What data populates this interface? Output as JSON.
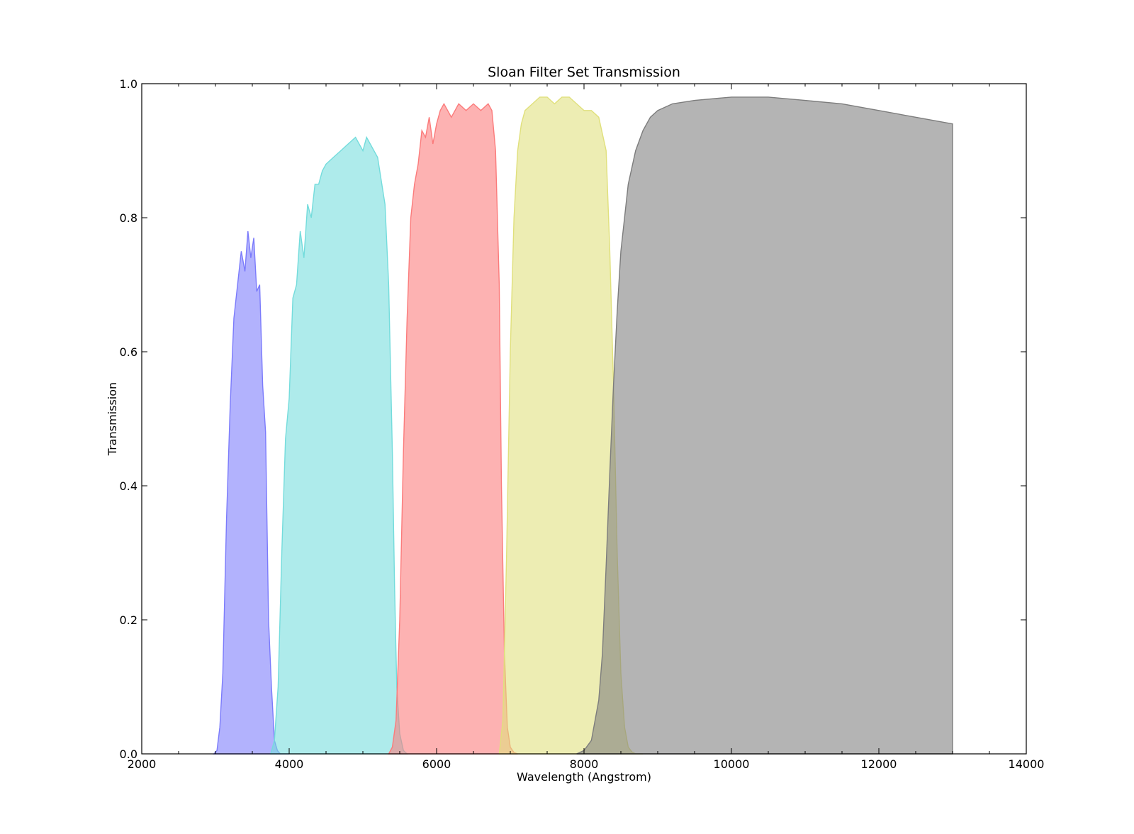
{
  "chart_data": {
    "type": "area",
    "title": "Sloan Filter Set Transmission",
    "xlabel": "Wavelength (Angstrom)",
    "ylabel": "Transmission",
    "xlim": [
      2000,
      14000
    ],
    "ylim": [
      0,
      1.0
    ],
    "x_ticks": [
      2000,
      4000,
      6000,
      8000,
      10000,
      12000,
      14000
    ],
    "x_tick_labels": [
      "2000",
      "4000",
      "6000",
      "8000",
      "10000",
      "12000",
      "14000"
    ],
    "y_ticks": [
      0,
      0.2,
      0.4,
      0.6,
      0.8,
      1.0
    ],
    "y_tick_labels": [
      "0.0",
      "0.2",
      "0.4",
      "0.6",
      "0.8",
      "1.0"
    ],
    "grid": false,
    "legend": "none",
    "series": [
      {
        "color": "#7b7bfb",
        "x": [
          2980,
          3020,
          3060,
          3100,
          3150,
          3200,
          3250,
          3300,
          3350,
          3400,
          3440,
          3480,
          3520,
          3560,
          3600,
          3640,
          3680,
          3720,
          3760,
          3800,
          3840,
          3880,
          3920,
          3960,
          4000
        ],
        "y": [
          0,
          0.005,
          0.04,
          0.12,
          0.35,
          0.52,
          0.65,
          0.7,
          0.75,
          0.72,
          0.78,
          0.74,
          0.77,
          0.69,
          0.7,
          0.55,
          0.48,
          0.2,
          0.1,
          0.02,
          0.005,
          0,
          0,
          0,
          0
        ]
      },
      {
        "color": "#74dcdc",
        "x": [
          3750,
          3800,
          3850,
          3900,
          3950,
          4000,
          4050,
          4100,
          4150,
          4200,
          4250,
          4300,
          4350,
          4400,
          4450,
          4500,
          4600,
          4700,
          4800,
          4900,
          5000,
          5050,
          5100,
          5200,
          5300,
          5350,
          5400,
          5430,
          5460,
          5500,
          5550,
          5600
        ],
        "y": [
          0,
          0.02,
          0.1,
          0.3,
          0.47,
          0.53,
          0.68,
          0.7,
          0.78,
          0.74,
          0.82,
          0.8,
          0.85,
          0.85,
          0.87,
          0.88,
          0.89,
          0.9,
          0.91,
          0.92,
          0.9,
          0.92,
          0.91,
          0.89,
          0.82,
          0.7,
          0.45,
          0.25,
          0.1,
          0.03,
          0.005,
          0
        ]
      },
      {
        "color": "#fb7b7b",
        "x": [
          5350,
          5400,
          5450,
          5500,
          5550,
          5600,
          5650,
          5700,
          5750,
          5800,
          5850,
          5900,
          5950,
          6000,
          6050,
          6100,
          6150,
          6200,
          6300,
          6400,
          6500,
          6600,
          6700,
          6750,
          6800,
          6850,
          6880,
          6920,
          6960,
          7000,
          7050,
          7100
        ],
        "y": [
          0,
          0.01,
          0.05,
          0.2,
          0.45,
          0.65,
          0.8,
          0.85,
          0.88,
          0.93,
          0.92,
          0.95,
          0.91,
          0.94,
          0.96,
          0.97,
          0.96,
          0.95,
          0.97,
          0.96,
          0.97,
          0.96,
          0.97,
          0.96,
          0.9,
          0.7,
          0.4,
          0.15,
          0.04,
          0.01,
          0.002,
          0
        ]
      },
      {
        "color": "#e0e07c",
        "x": [
          6850,
          6900,
          6950,
          7000,
          7050,
          7100,
          7150,
          7200,
          7300,
          7400,
          7500,
          7600,
          7700,
          7800,
          7900,
          8000,
          8100,
          8200,
          8300,
          8350,
          8400,
          8450,
          8500,
          8550,
          8600,
          8650,
          8700,
          8800
        ],
        "y": [
          0,
          0.05,
          0.3,
          0.6,
          0.8,
          0.9,
          0.94,
          0.96,
          0.97,
          0.98,
          0.98,
          0.97,
          0.98,
          0.98,
          0.97,
          0.96,
          0.96,
          0.95,
          0.9,
          0.75,
          0.55,
          0.3,
          0.12,
          0.04,
          0.01,
          0.003,
          0,
          0
        ]
      },
      {
        "color": "#7d7d7d",
        "x": [
          7900,
          8000,
          8100,
          8200,
          8250,
          8300,
          8350,
          8400,
          8450,
          8500,
          8600,
          8700,
          8800,
          8900,
          9000,
          9200,
          9500,
          10000,
          10500,
          11000,
          11500,
          12000,
          12500,
          13000,
          13000
        ],
        "y": [
          0,
          0.005,
          0.02,
          0.08,
          0.15,
          0.28,
          0.42,
          0.55,
          0.66,
          0.75,
          0.85,
          0.9,
          0.93,
          0.95,
          0.96,
          0.97,
          0.975,
          0.98,
          0.98,
          0.975,
          0.97,
          0.96,
          0.95,
          0.94,
          0
        ]
      }
    ]
  }
}
